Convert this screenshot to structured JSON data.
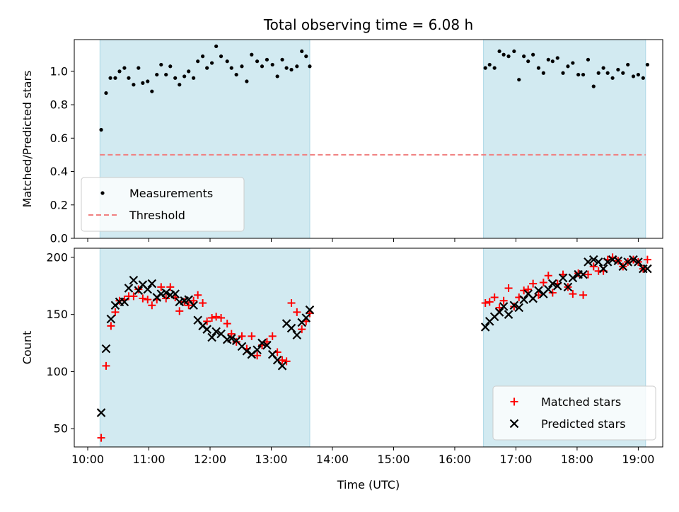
{
  "chart_data": {
    "type": "scatter",
    "title": "Total observing time = 6.08 h",
    "xlabel": "Time (UTC)",
    "x_ticks": [
      "10:00",
      "11:00",
      "12:00",
      "13:00",
      "14:00",
      "15:00",
      "16:00",
      "17:00",
      "18:00",
      "19:00"
    ],
    "xlim_hours": [
      9.78,
      19.4
    ],
    "observing_windows_hours": [
      [
        10.2,
        13.63
      ],
      [
        16.47,
        19.12
      ]
    ],
    "colors": {
      "window": "#add8e6",
      "measurements": "#000000",
      "threshold": "#f08080",
      "matched": "#ff0000",
      "predicted": "#000000"
    },
    "panels": [
      {
        "id": "ratio",
        "ylabel": "Matched/Predicted stars",
        "ylim": [
          0,
          1.19
        ],
        "y_ticks": [
          "0.0",
          "0.2",
          "0.4",
          "0.6",
          "0.8",
          "1.0"
        ],
        "legend_placement": "lower-left",
        "threshold": {
          "name": "Threshold",
          "value": 0.5
        },
        "series": [
          {
            "name": "Measurements",
            "marker": "dot",
            "x": [
              10.22,
              10.3,
              10.37,
              10.45,
              10.52,
              10.6,
              10.67,
              10.75,
              10.83,
              10.9,
              10.98,
              11.05,
              11.13,
              11.2,
              11.28,
              11.35,
              11.43,
              11.5,
              11.58,
              11.65,
              11.73,
              11.8,
              11.88,
              11.95,
              12.03,
              12.1,
              12.18,
              12.28,
              12.35,
              12.43,
              12.52,
              12.6,
              12.68,
              12.77,
              12.85,
              12.93,
              13.02,
              13.1,
              13.18,
              13.25,
              13.33,
              13.42,
              13.5,
              13.57,
              13.63,
              16.5,
              16.57,
              16.65,
              16.73,
              16.8,
              16.88,
              16.97,
              17.05,
              17.13,
              17.2,
              17.28,
              17.37,
              17.45,
              17.53,
              17.6,
              17.68,
              17.77,
              17.85,
              17.93,
              18.02,
              18.1,
              18.18,
              18.27,
              18.35,
              18.43,
              18.5,
              18.58,
              18.67,
              18.75,
              18.83,
              18.92,
              19.0,
              19.08,
              19.15
            ],
            "y": [
              0.65,
              0.87,
              0.96,
              0.96,
              1.0,
              1.02,
              0.96,
              0.92,
              1.02,
              0.93,
              0.94,
              0.88,
              0.98,
              1.04,
              0.98,
              1.03,
              0.96,
              0.92,
              0.97,
              1.0,
              0.96,
              1.06,
              1.09,
              1.02,
              1.05,
              1.15,
              1.09,
              1.06,
              1.02,
              0.98,
              1.03,
              0.94,
              1.1,
              1.06,
              1.03,
              1.07,
              1.04,
              0.97,
              1.07,
              1.02,
              1.01,
              1.03,
              1.12,
              1.09,
              1.03,
              1.02,
              1.04,
              1.02,
              1.12,
              1.1,
              1.09,
              1.12,
              0.95,
              1.09,
              1.06,
              1.1,
              1.02,
              0.99,
              1.07,
              1.06,
              1.08,
              0.99,
              1.03,
              1.05,
              0.98,
              0.98,
              1.07,
              0.91,
              0.99,
              1.02,
              0.99,
              0.96,
              1.01,
              0.99,
              1.04,
              0.97,
              0.98,
              0.96,
              1.04
            ]
          }
        ]
      },
      {
        "id": "count",
        "ylabel": "Count",
        "ylim": [
          34,
          208
        ],
        "y_ticks": [
          "50",
          "100",
          "150",
          "200"
        ],
        "legend_placement": "lower-right",
        "series": [
          {
            "name": "Matched stars",
            "marker": "plus",
            "x": [
              10.22,
              10.3,
              10.38,
              10.45,
              10.52,
              10.6,
              10.67,
              10.75,
              10.83,
              10.9,
              10.98,
              11.05,
              11.13,
              11.2,
              11.28,
              11.35,
              11.43,
              11.5,
              11.58,
              11.65,
              11.73,
              11.8,
              11.88,
              11.95,
              12.03,
              12.1,
              12.18,
              12.28,
              12.35,
              12.43,
              12.52,
              12.6,
              12.68,
              12.77,
              12.85,
              12.93,
              13.02,
              13.1,
              13.18,
              13.25,
              13.33,
              13.42,
              13.5,
              13.57,
              13.63,
              16.5,
              16.57,
              16.65,
              16.73,
              16.8,
              16.88,
              16.97,
              17.05,
              17.13,
              17.2,
              17.28,
              17.37,
              17.45,
              17.53,
              17.6,
              17.68,
              17.77,
              17.85,
              17.93,
              18.02,
              18.1,
              18.18,
              18.27,
              18.35,
              18.43,
              18.5,
              18.58,
              18.67,
              18.75,
              18.83,
              18.92,
              19.0,
              19.08,
              19.15
            ],
            "y": [
              42,
              105,
              140,
              152,
              162,
              163,
              166,
              166,
              172,
              164,
              163,
              158,
              163,
              174,
              164,
              174,
              165,
              153,
              161,
              158,
              162,
              167,
              160,
              144,
              147,
              148,
              147,
              142,
              133,
              126,
              131,
              120,
              131,
              114,
              123,
              126,
              131,
              117,
              110,
              109,
              160,
              152,
              137,
              144,
              151,
              160,
              161,
              165,
              156,
              162,
              173,
              157,
              165,
              171,
              172,
              177,
              167,
              178,
              184,
              169,
              177,
              185,
              174,
              168,
              186,
              167,
              185,
              192,
              188,
              188,
              198,
              200,
              197,
              192,
              196,
              198,
              196,
              190,
              198
            ]
          },
          {
            "name": "Predicted stars",
            "marker": "x",
            "x": [
              10.22,
              10.3,
              10.38,
              10.45,
              10.52,
              10.6,
              10.67,
              10.75,
              10.83,
              10.9,
              10.98,
              11.05,
              11.13,
              11.2,
              11.28,
              11.35,
              11.43,
              11.5,
              11.58,
              11.65,
              11.73,
              11.8,
              11.88,
              11.95,
              12.03,
              12.1,
              12.18,
              12.28,
              12.35,
              12.43,
              12.52,
              12.6,
              12.68,
              12.77,
              12.85,
              12.93,
              13.02,
              13.1,
              13.18,
              13.25,
              13.33,
              13.42,
              13.5,
              13.57,
              13.63,
              16.5,
              16.57,
              16.65,
              16.73,
              16.8,
              16.88,
              16.97,
              17.05,
              17.13,
              17.2,
              17.28,
              17.37,
              17.45,
              17.53,
              17.6,
              17.68,
              17.77,
              17.85,
              17.93,
              18.02,
              18.1,
              18.18,
              18.27,
              18.35,
              18.43,
              18.5,
              18.58,
              18.67,
              18.75,
              18.83,
              18.92,
              19.0,
              19.08,
              19.15
            ],
            "y": [
              64,
              120,
              146,
              158,
              161,
              161,
              173,
              180,
              171,
              176,
              172,
              177,
              165,
              168,
              169,
              167,
              168,
              161,
              162,
              163,
              158,
              145,
              140,
              137,
              130,
              135,
              133,
              128,
              129,
              127,
              122,
              118,
              115,
              119,
              125,
              123,
              115,
              110,
              105,
              142,
              138,
              132,
              143,
              147,
              154,
              139,
              144,
              148,
              152,
              157,
              150,
              158,
              156,
              163,
              168,
              164,
              171,
              168,
              172,
              177,
              175,
              182,
              174,
              182,
              185,
              185,
              196,
              198,
              196,
              190,
              196,
              198,
              197,
              192,
              196,
              198,
              196,
              190,
              190
            ]
          }
        ]
      }
    ]
  }
}
